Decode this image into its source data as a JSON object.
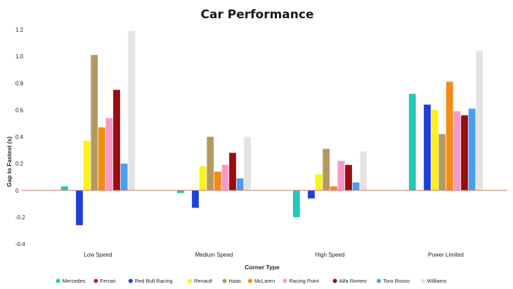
{
  "chart_data": {
    "type": "bar",
    "title": "Car Performance",
    "xlabel": "Corner Type",
    "ylabel": "Gap to Fastest (s)",
    "ylim": [
      -0.4,
      1.2
    ],
    "yticks": [
      -0.4,
      -0.2,
      0,
      0.2,
      0.4,
      0.6,
      0.8,
      1.0,
      1.2
    ],
    "ytick_labels": [
      "-0.4",
      "-0.2",
      "0",
      "0.2",
      "0.4",
      "0.6",
      "0.8",
      "1.0",
      "1.2"
    ],
    "grid": false,
    "legend_position": "bottom",
    "categories": [
      "Low Speed",
      "Medium Speed",
      "High Speed",
      "Power Limited"
    ],
    "series": [
      {
        "name": "Mercedes",
        "color": "#20c9b3",
        "values": [
          0.03,
          -0.02,
          -0.2,
          0.72
        ]
      },
      {
        "name": "Ferrari",
        "color": "#cc1f1f",
        "values": [
          0,
          0,
          0,
          0
        ]
      },
      {
        "name": "Red Bull Racing",
        "color": "#1f3fdc",
        "values": [
          -0.26,
          -0.13,
          -0.06,
          0.64
        ]
      },
      {
        "name": "Renault",
        "color": "#fcf11c",
        "values": [
          0.37,
          0.18,
          0.12,
          0.6
        ]
      },
      {
        "name": "Haas",
        "color": "#b39a62",
        "values": [
          1.01,
          0.4,
          0.31,
          0.42
        ]
      },
      {
        "name": "McLaren",
        "color": "#f58a14",
        "values": [
          0.47,
          0.14,
          0.03,
          0.81
        ]
      },
      {
        "name": "Racing Point",
        "color": "#f59ac8",
        "values": [
          0.54,
          0.19,
          0.22,
          0.59
        ]
      },
      {
        "name": "Alfa Romeo",
        "color": "#9a0d0d",
        "values": [
          0.75,
          0.28,
          0.19,
          0.56
        ]
      },
      {
        "name": "Toro Rosso",
        "color": "#4a9ef0",
        "values": [
          0.2,
          0.09,
          0.06,
          0.61
        ]
      },
      {
        "name": "Williams",
        "color": "#e3e3e3",
        "values": [
          1.19,
          0.4,
          0.29,
          1.04
        ]
      }
    ],
    "zero_line_color": "#c97a6a"
  }
}
